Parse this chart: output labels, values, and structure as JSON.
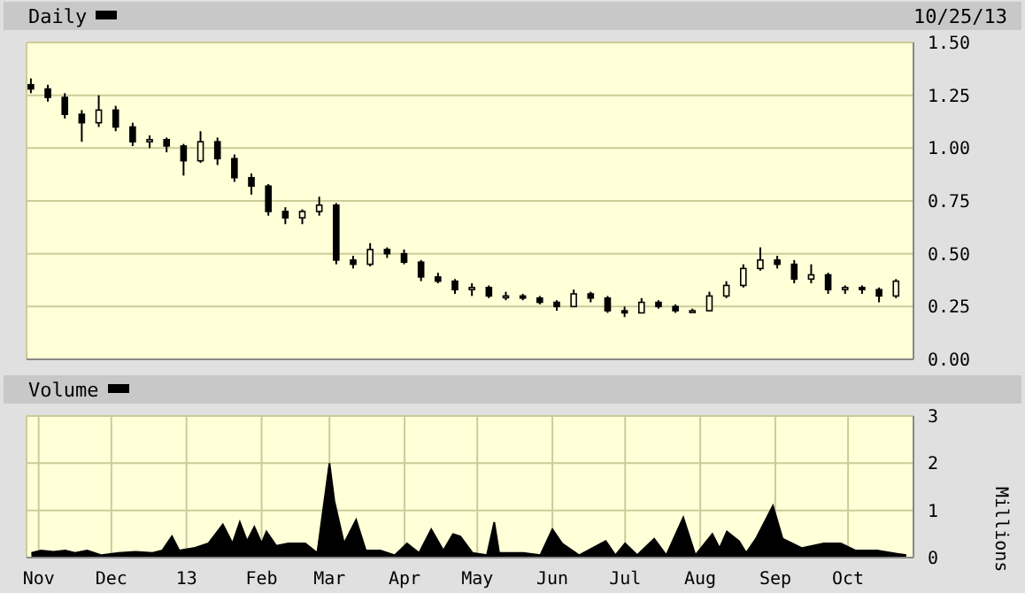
{
  "chart_data": [
    {
      "type": "candlestick",
      "annotations": [
        "10/25/13"
      ],
      "legend": "top left",
      "grid": true,
      "tick_labels": "y",
      "xlim": [
        "2012-10-27",
        "2013-10-28"
      ],
      "xticks": [
        {
          "value": "2012-11-01",
          "label": null
        },
        {
          "value": "2012-12-01",
          "label": null
        },
        {
          "value": "2013-01-01",
          "label": null
        },
        {
          "value": "2013-02-01",
          "label": null
        },
        {
          "value": "2013-03-01",
          "label": null
        },
        {
          "value": "2013-04-01",
          "label": null
        },
        {
          "value": "2013-05-01",
          "label": null
        },
        {
          "value": "2013-06-01",
          "label": null
        },
        {
          "value": "2013-07-01",
          "label": null
        },
        {
          "value": "2013-08-01",
          "label": null
        },
        {
          "value": "2013-09-01",
          "label": null
        },
        {
          "value": "2013-10-01",
          "label": null
        }
      ],
      "ylim": [
        0,
        1.5
      ],
      "yticks": [
        {
          "value": 0,
          "label": "0.00"
        },
        {
          "value": 0.25,
          "label": "0.25"
        },
        {
          "value": 0.5,
          "label": "0.50"
        },
        {
          "value": 0.75,
          "label": "0.75"
        },
        {
          "value": 1,
          "label": "1.00"
        },
        {
          "value": 1.25,
          "label": "1.25"
        },
        {
          "value": 1.5,
          "label": "1.50"
        }
      ],
      "series": [
        {
          "name": "Daily",
          "color": "#000000",
          "x": [
            "2012-10-29",
            "2012-11-05",
            "2012-11-12",
            "2012-11-19",
            "2012-11-26",
            "2012-12-03",
            "2012-12-10",
            "2012-12-17",
            "2012-12-24",
            "2012-12-31",
            "2013-01-07",
            "2013-01-14",
            "2013-01-21",
            "2013-01-28",
            "2013-02-04",
            "2013-02-11",
            "2013-02-18",
            "2013-02-25",
            "2013-03-04",
            "2013-03-11",
            "2013-03-18",
            "2013-03-25",
            "2013-04-01",
            "2013-04-08",
            "2013-04-15",
            "2013-04-22",
            "2013-04-29",
            "2013-05-06",
            "2013-05-13",
            "2013-05-20",
            "2013-05-27",
            "2013-06-03",
            "2013-06-10",
            "2013-06-17",
            "2013-06-24",
            "2013-07-01",
            "2013-07-08",
            "2013-07-15",
            "2013-07-22",
            "2013-07-29",
            "2013-08-05",
            "2013-08-12",
            "2013-08-19",
            "2013-08-26",
            "2013-09-02",
            "2013-09-09",
            "2013-09-16",
            "2013-09-23",
            "2013-09-30",
            "2013-10-07",
            "2013-10-14",
            "2013-10-21"
          ],
          "ohlc": [
            [
              1.3,
              1.33,
              1.26,
              1.28
            ],
            [
              1.28,
              1.3,
              1.22,
              1.24
            ],
            [
              1.24,
              1.26,
              1.14,
              1.16
            ],
            [
              1.16,
              1.18,
              1.03,
              1.12
            ],
            [
              1.12,
              1.25,
              1.1,
              1.18
            ],
            [
              1.18,
              1.2,
              1.08,
              1.1
            ],
            [
              1.1,
              1.12,
              1.01,
              1.03
            ],
            [
              1.03,
              1.06,
              1.0,
              1.04
            ],
            [
              1.04,
              1.05,
              0.98,
              1.01
            ],
            [
              1.01,
              1.02,
              0.87,
              0.94
            ],
            [
              0.94,
              1.08,
              0.93,
              1.03
            ],
            [
              1.03,
              1.05,
              0.92,
              0.95
            ],
            [
              0.95,
              0.97,
              0.84,
              0.86
            ],
            [
              0.86,
              0.88,
              0.78,
              0.82
            ],
            [
              0.82,
              0.83,
              0.68,
              0.7
            ],
            [
              0.7,
              0.72,
              0.64,
              0.67
            ],
            [
              0.67,
              0.71,
              0.64,
              0.7
            ],
            [
              0.7,
              0.77,
              0.68,
              0.73
            ],
            [
              0.73,
              0.74,
              0.45,
              0.47
            ],
            [
              0.47,
              0.49,
              0.43,
              0.45
            ],
            [
              0.45,
              0.55,
              0.44,
              0.52
            ],
            [
              0.52,
              0.53,
              0.48,
              0.5
            ],
            [
              0.5,
              0.52,
              0.45,
              0.46
            ],
            [
              0.46,
              0.47,
              0.37,
              0.39
            ],
            [
              0.39,
              0.41,
              0.36,
              0.37
            ],
            [
              0.37,
              0.38,
              0.31,
              0.33
            ],
            [
              0.33,
              0.36,
              0.3,
              0.34
            ],
            [
              0.34,
              0.35,
              0.29,
              0.3
            ],
            [
              0.3,
              0.32,
              0.28,
              0.3
            ],
            [
              0.3,
              0.31,
              0.28,
              0.29
            ],
            [
              0.29,
              0.3,
              0.26,
              0.27
            ],
            [
              0.27,
              0.28,
              0.23,
              0.25
            ],
            [
              0.25,
              0.33,
              0.25,
              0.31
            ],
            [
              0.31,
              0.32,
              0.27,
              0.29
            ],
            [
              0.29,
              0.3,
              0.22,
              0.23
            ],
            [
              0.23,
              0.25,
              0.2,
              0.22
            ],
            [
              0.22,
              0.29,
              0.22,
              0.27
            ],
            [
              0.27,
              0.28,
              0.24,
              0.25
            ],
            [
              0.25,
              0.26,
              0.22,
              0.23
            ],
            [
              0.23,
              0.24,
              0.22,
              0.23
            ],
            [
              0.23,
              0.32,
              0.23,
              0.3
            ],
            [
              0.3,
              0.37,
              0.29,
              0.35
            ],
            [
              0.35,
              0.45,
              0.34,
              0.43
            ],
            [
              0.43,
              0.53,
              0.42,
              0.47
            ],
            [
              0.47,
              0.49,
              0.43,
              0.45
            ],
            [
              0.45,
              0.47,
              0.36,
              0.38
            ],
            [
              0.38,
              0.45,
              0.36,
              0.4
            ],
            [
              0.4,
              0.41,
              0.31,
              0.33
            ],
            [
              0.33,
              0.35,
              0.31,
              0.34
            ],
            [
              0.34,
              0.35,
              0.31,
              0.33
            ],
            [
              0.33,
              0.34,
              0.27,
              0.3
            ],
            [
              0.3,
              0.38,
              0.29,
              0.37
            ]
          ]
        }
      ]
    },
    {
      "type": "area",
      "ylabel": "Millions",
      "legend": "top left",
      "grid": true,
      "xlim": [
        "2012-10-27",
        "2013-10-28"
      ],
      "xticks": [
        {
          "value": "2012-11-01",
          "label": "Nov"
        },
        {
          "value": "2012-12-01",
          "label": "Dec"
        },
        {
          "value": "2013-01-01",
          "label": "13"
        },
        {
          "value": "2013-02-01",
          "label": "Feb"
        },
        {
          "value": "2013-03-01",
          "label": "Mar"
        },
        {
          "value": "2013-04-01",
          "label": "Apr"
        },
        {
          "value": "2013-05-01",
          "label": "May"
        },
        {
          "value": "2013-06-01",
          "label": "Jun"
        },
        {
          "value": "2013-07-01",
          "label": "Jul"
        },
        {
          "value": "2013-08-01",
          "label": "Aug"
        },
        {
          "value": "2013-09-01",
          "label": "Sep"
        },
        {
          "value": "2013-10-01",
          "label": "Oct"
        }
      ],
      "ylim": [
        0,
        3
      ],
      "yticks": [
        0,
        1,
        2,
        3
      ],
      "series": [
        {
          "name": "Volume",
          "color": "#000000",
          "x": [
            "2012-10-29",
            "2012-11-02",
            "2012-11-07",
            "2012-11-12",
            "2012-11-16",
            "2012-11-21",
            "2012-11-27",
            "2012-12-04",
            "2012-12-11",
            "2012-12-18",
            "2012-12-22",
            "2012-12-26",
            "2012-12-29",
            "2013-01-04",
            "2013-01-10",
            "2013-01-16",
            "2013-01-20",
            "2013-01-23",
            "2013-01-26",
            "2013-01-29",
            "2013-02-01",
            "2013-02-03",
            "2013-02-07",
            "2013-02-12",
            "2013-02-19",
            "2013-02-24",
            "2013-03-01",
            "2013-03-03",
            "2013-03-07",
            "2013-03-12",
            "2013-03-16",
            "2013-03-22",
            "2013-03-28",
            "2013-04-02",
            "2013-04-07",
            "2013-04-12",
            "2013-04-17",
            "2013-04-21",
            "2013-04-24",
            "2013-04-29",
            "2013-05-05",
            "2013-05-08",
            "2013-05-10",
            "2013-05-20",
            "2013-05-27",
            "2013-06-01",
            "2013-06-05",
            "2013-06-12",
            "2013-06-23",
            "2013-06-27",
            "2013-07-01",
            "2013-07-06",
            "2013-07-13",
            "2013-07-18",
            "2013-07-25",
            "2013-07-30",
            "2013-08-06",
            "2013-08-09",
            "2013-08-12",
            "2013-08-17",
            "2013-08-20",
            "2013-08-24",
            "2013-08-31",
            "2013-09-04",
            "2013-09-12",
            "2013-09-21",
            "2013-09-28",
            "2013-10-04",
            "2013-10-13",
            "2013-10-19",
            "2013-10-25"
          ],
          "values": [
            0.1,
            0.15,
            0.12,
            0.15,
            0.1,
            0.15,
            0.05,
            0.1,
            0.12,
            0.1,
            0.15,
            0.45,
            0.15,
            0.2,
            0.3,
            0.7,
            0.3,
            0.75,
            0.35,
            0.65,
            0.3,
            0.55,
            0.25,
            0.3,
            0.3,
            0.1,
            2.0,
            1.2,
            0.3,
            0.8,
            0.15,
            0.15,
            0.05,
            0.3,
            0.1,
            0.6,
            0.15,
            0.5,
            0.45,
            0.1,
            0.05,
            0.75,
            0.1,
            0.1,
            0.05,
            0.6,
            0.3,
            0.05,
            0.35,
            0.05,
            0.3,
            0.05,
            0.4,
            0.05,
            0.85,
            0.05,
            0.5,
            0.2,
            0.55,
            0.35,
            0.1,
            0.4,
            1.1,
            0.4,
            0.2,
            0.3,
            0.3,
            0.15,
            0.15,
            0.1,
            0.05
          ]
        }
      ]
    }
  ]
}
